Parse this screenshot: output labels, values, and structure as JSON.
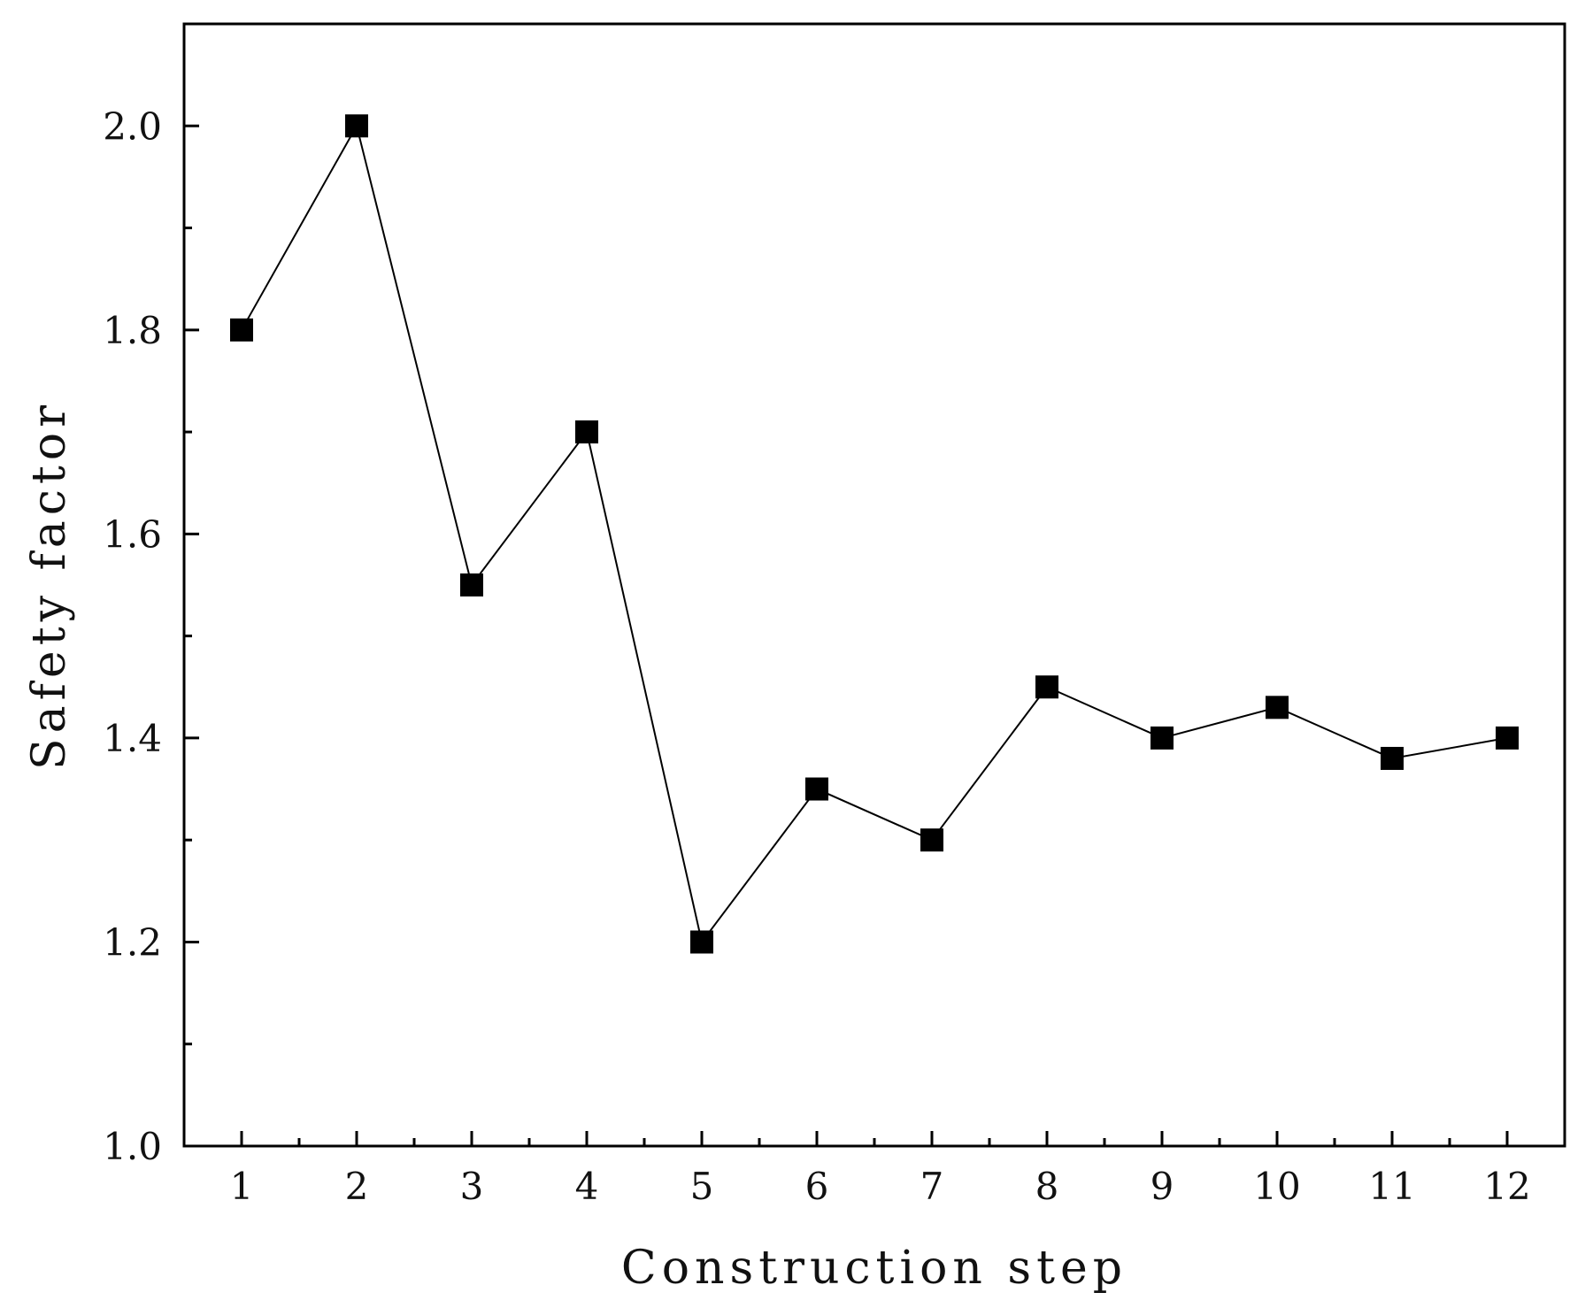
{
  "chart_data": {
    "type": "line",
    "title": "",
    "xlabel": "Construction step",
    "ylabel": "Safety factor",
    "x": [
      1,
      2,
      3,
      4,
      5,
      6,
      7,
      8,
      9,
      10,
      11,
      12
    ],
    "x_tick_labels": [
      "1",
      "2",
      "3",
      "4",
      "5",
      "6",
      "7",
      "8",
      "9",
      "10",
      "11",
      "12"
    ],
    "y_tick_labels": [
      "1.0",
      "1.2",
      "1.4",
      "1.6",
      "1.8",
      "2.0"
    ],
    "y_ticks": [
      1.0,
      1.2,
      1.4,
      1.6,
      1.8,
      2.0
    ],
    "y_minor_ticks": [
      1.1,
      1.3,
      1.5,
      1.7,
      1.9
    ],
    "xlim": [
      0.5,
      12.5
    ],
    "ylim": [
      1.0,
      2.1
    ],
    "grid": false,
    "series": [
      {
        "values": [
          1.8,
          2.0,
          1.55,
          1.7,
          1.2,
          1.35,
          1.3,
          1.45,
          1.4,
          1.43,
          1.38,
          1.4
        ],
        "marker": "square",
        "color": "#000000"
      }
    ]
  }
}
